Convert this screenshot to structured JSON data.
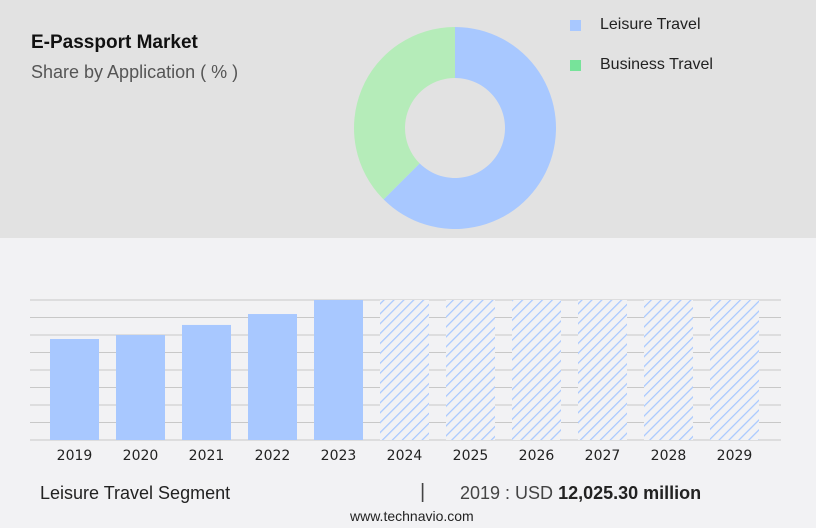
{
  "header": {
    "title": "E-Passport Market",
    "subtitle": "Share by Application ( % )"
  },
  "colors": {
    "leisure": "#a8c8ff",
    "business": "#b5ecb9",
    "business_legend": "#77e39a",
    "top_bg": "#e2e2e2",
    "bottom_bg": "#f2f2f4",
    "grid": "#c8c8c8"
  },
  "chart_data": [
    {
      "type": "pie",
      "variant": "donut",
      "title": "Share by Application ( % )",
      "legend_position": "top-right",
      "slices": [
        {
          "name": "Leisure Travel",
          "value": 62.5
        },
        {
          "name": "Business Travel",
          "value": 37.5
        }
      ]
    },
    {
      "type": "bar",
      "categories": [
        "2019",
        "2020",
        "2021",
        "2022",
        "2023",
        "2024",
        "2025",
        "2026",
        "2027",
        "2028",
        "2029"
      ],
      "values": [
        12025.3,
        12500,
        13700,
        15000,
        16670,
        null,
        null,
        null,
        null,
        null,
        null
      ],
      "forecast_from": "2024",
      "forecast_style": "hatched",
      "grid": true,
      "y_axis_labels": false
    }
  ],
  "legend": [
    {
      "label": "Leisure Travel"
    },
    {
      "label": "Business Travel"
    }
  ],
  "footer": {
    "segment": "Leisure Travel Segment",
    "separator": "|",
    "value_prefix": "2019 : USD",
    "value": "12,025.30 million",
    "url": "www.technavio.com"
  }
}
